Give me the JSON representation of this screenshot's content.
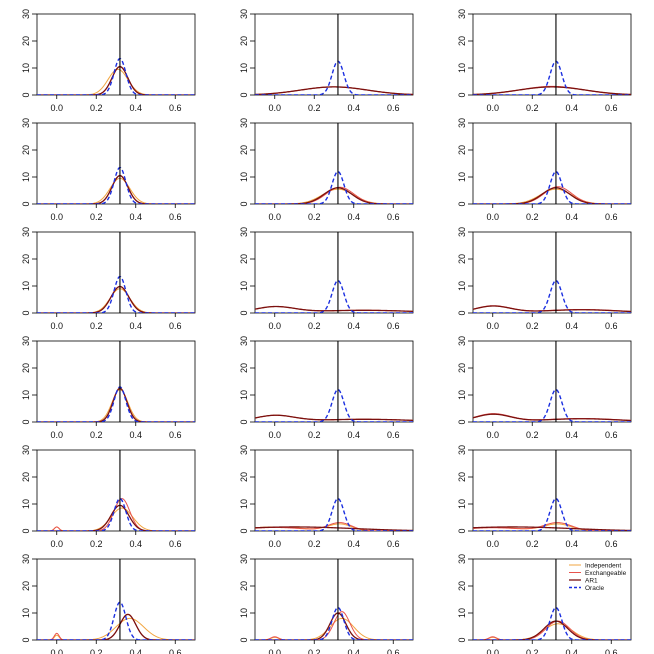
{
  "colors": {
    "independent": "#f2a640",
    "exchangeable": "#e8534d",
    "ar1": "#7a1010",
    "oracle": "#1b2fe0",
    "truth_line": "#000000",
    "axis": "#000000"
  },
  "legend": {
    "placement": "top-right of bottom-right panel",
    "entries": [
      "Independent",
      "Exchangeable",
      "AR1",
      "Oracle"
    ]
  },
  "chart_data": {
    "type": "line",
    "layout": {
      "rows": 6,
      "cols": 3
    },
    "xlim": [
      -0.1,
      0.7
    ],
    "ylim": [
      0,
      30
    ],
    "x_ticks": [
      "0.0",
      "0.2",
      "0.4",
      "0.6"
    ],
    "y_ticks": [
      "0",
      "10",
      "20",
      "30"
    ],
    "truth_x": 0.32,
    "series_names": [
      "Independent",
      "Exchangeable",
      "AR1",
      "Oracle"
    ],
    "panels": [
      {
        "row": 1,
        "col": 1,
        "curves": [
          {
            "name": "Independent",
            "peaks": [
              {
                "m": 0.31,
                "s": 0.05,
                "h": 9.5
              }
            ]
          },
          {
            "name": "Exchangeable",
            "peaks": [
              {
                "m": 0.32,
                "s": 0.04,
                "h": 10.5
              }
            ]
          },
          {
            "name": "AR1",
            "peaks": [
              {
                "m": 0.32,
                "s": 0.04,
                "h": 10.5
              }
            ]
          },
          {
            "name": "Oracle",
            "peaks": [
              {
                "m": 0.32,
                "s": 0.03,
                "h": 13.5
              }
            ]
          }
        ]
      },
      {
        "row": 1,
        "col": 2,
        "curves": [
          {
            "name": "Independent",
            "peaks": [
              {
                "m": 0.3,
                "s": 0.17,
                "h": 3
              }
            ]
          },
          {
            "name": "Exchangeable",
            "peaks": [
              {
                "m": 0.3,
                "s": 0.17,
                "h": 3
              }
            ]
          },
          {
            "name": "AR1",
            "peaks": [
              {
                "m": 0.3,
                "s": 0.17,
                "h": 3
              }
            ]
          },
          {
            "name": "Oracle",
            "peaks": [
              {
                "m": 0.32,
                "s": 0.03,
                "h": 12.5
              }
            ]
          }
        ]
      },
      {
        "row": 1,
        "col": 3,
        "curves": [
          {
            "name": "Independent",
            "peaks": [
              {
                "m": 0.3,
                "s": 0.17,
                "h": 3
              }
            ]
          },
          {
            "name": "Exchangeable",
            "peaks": [
              {
                "m": 0.3,
                "s": 0.16,
                "h": 3.2
              }
            ]
          },
          {
            "name": "AR1",
            "peaks": [
              {
                "m": 0.3,
                "s": 0.17,
                "h": 3
              }
            ]
          },
          {
            "name": "Oracle",
            "peaks": [
              {
                "m": 0.32,
                "s": 0.03,
                "h": 12.5
              }
            ]
          }
        ]
      },
      {
        "row": 2,
        "col": 1,
        "curves": [
          {
            "name": "Independent",
            "peaks": [
              {
                "m": 0.32,
                "s": 0.05,
                "h": 9.5
              }
            ]
          },
          {
            "name": "Exchangeable",
            "peaks": [
              {
                "m": 0.32,
                "s": 0.04,
                "h": 10.5
              }
            ]
          },
          {
            "name": "AR1",
            "peaks": [
              {
                "m": 0.32,
                "s": 0.04,
                "h": 10.5
              }
            ]
          },
          {
            "name": "Oracle",
            "peaks": [
              {
                "m": 0.32,
                "s": 0.03,
                "h": 13.5
              }
            ]
          }
        ]
      },
      {
        "row": 2,
        "col": 2,
        "curves": [
          {
            "name": "Independent",
            "peaks": [
              {
                "m": 0.32,
                "s": 0.08,
                "h": 5.5
              }
            ]
          },
          {
            "name": "Exchangeable",
            "peaks": [
              {
                "m": 0.33,
                "s": 0.07,
                "h": 6.2
              }
            ]
          },
          {
            "name": "AR1",
            "peaks": [
              {
                "m": 0.32,
                "s": 0.07,
                "h": 6
              }
            ]
          },
          {
            "name": "Oracle",
            "peaks": [
              {
                "m": 0.32,
                "s": 0.03,
                "h": 12
              }
            ]
          }
        ]
      },
      {
        "row": 2,
        "col": 3,
        "curves": [
          {
            "name": "Independent",
            "peaks": [
              {
                "m": 0.32,
                "s": 0.08,
                "h": 5.5
              }
            ]
          },
          {
            "name": "Exchangeable",
            "peaks": [
              {
                "m": 0.33,
                "s": 0.07,
                "h": 6.4
              }
            ]
          },
          {
            "name": "AR1",
            "peaks": [
              {
                "m": 0.32,
                "s": 0.07,
                "h": 6
              }
            ]
          },
          {
            "name": "Oracle",
            "peaks": [
              {
                "m": 0.32,
                "s": 0.03,
                "h": 12
              }
            ]
          }
        ]
      },
      {
        "row": 3,
        "col": 1,
        "curves": [
          {
            "name": "Independent",
            "peaks": [
              {
                "m": 0.32,
                "s": 0.05,
                "h": 9
              }
            ]
          },
          {
            "name": "Exchangeable",
            "peaks": [
              {
                "m": 0.32,
                "s": 0.045,
                "h": 9.8
              }
            ]
          },
          {
            "name": "AR1",
            "peaks": [
              {
                "m": 0.32,
                "s": 0.045,
                "h": 9.8
              }
            ]
          },
          {
            "name": "Oracle",
            "peaks": [
              {
                "m": 0.32,
                "s": 0.03,
                "h": 13.5
              }
            ]
          }
        ]
      },
      {
        "row": 3,
        "col": 2,
        "curves": [
          {
            "name": "Independent",
            "peaks": [
              {
                "m": 0.0,
                "s": 0.1,
                "h": 2.2
              },
              {
                "m": 0.45,
                "s": 0.25,
                "h": 1
              }
            ]
          },
          {
            "name": "Exchangeable",
            "peaks": [
              {
                "m": 0.0,
                "s": 0.1,
                "h": 2.2
              },
              {
                "m": 0.45,
                "s": 0.25,
                "h": 1
              }
            ]
          },
          {
            "name": "AR1",
            "peaks": [
              {
                "m": 0.0,
                "s": 0.1,
                "h": 2.2
              },
              {
                "m": 0.45,
                "s": 0.25,
                "h": 1
              }
            ]
          },
          {
            "name": "Oracle",
            "peaks": [
              {
                "m": 0.32,
                "s": 0.03,
                "h": 12
              }
            ]
          }
        ]
      },
      {
        "row": 3,
        "col": 3,
        "curves": [
          {
            "name": "Independent",
            "peaks": [
              {
                "m": 0.0,
                "s": 0.09,
                "h": 2.5
              },
              {
                "m": 0.45,
                "s": 0.2,
                "h": 1.2
              }
            ]
          },
          {
            "name": "Exchangeable",
            "peaks": [
              {
                "m": 0.0,
                "s": 0.09,
                "h": 2.6
              },
              {
                "m": 0.45,
                "s": 0.2,
                "h": 1.3
              }
            ]
          },
          {
            "name": "AR1",
            "peaks": [
              {
                "m": 0.0,
                "s": 0.09,
                "h": 2.5
              },
              {
                "m": 0.45,
                "s": 0.2,
                "h": 1.2
              }
            ]
          },
          {
            "name": "Oracle",
            "peaks": [
              {
                "m": 0.32,
                "s": 0.03,
                "h": 12
              }
            ]
          }
        ]
      },
      {
        "row": 4,
        "col": 1,
        "curves": [
          {
            "name": "Independent",
            "peaks": [
              {
                "m": 0.32,
                "s": 0.04,
                "h": 12
              }
            ]
          },
          {
            "name": "Exchangeable",
            "peaks": [
              {
                "m": 0.32,
                "s": 0.035,
                "h": 12.5
              }
            ]
          },
          {
            "name": "AR1",
            "peaks": [
              {
                "m": 0.32,
                "s": 0.035,
                "h": 12.5
              }
            ]
          },
          {
            "name": "Oracle",
            "peaks": [
              {
                "m": 0.32,
                "s": 0.03,
                "h": 13
              }
            ]
          }
        ]
      },
      {
        "row": 4,
        "col": 2,
        "curves": [
          {
            "name": "Independent",
            "peaks": [
              {
                "m": 0.0,
                "s": 0.1,
                "h": 2.3
              },
              {
                "m": 0.45,
                "s": 0.25,
                "h": 1
              }
            ]
          },
          {
            "name": "Exchangeable",
            "peaks": [
              {
                "m": 0.0,
                "s": 0.1,
                "h": 2.3
              },
              {
                "m": 0.45,
                "s": 0.25,
                "h": 1
              }
            ]
          },
          {
            "name": "AR1",
            "peaks": [
              {
                "m": 0.0,
                "s": 0.1,
                "h": 2.3
              },
              {
                "m": 0.45,
                "s": 0.25,
                "h": 1
              }
            ]
          },
          {
            "name": "Oracle",
            "peaks": [
              {
                "m": 0.32,
                "s": 0.03,
                "h": 12
              }
            ]
          }
        ]
      },
      {
        "row": 4,
        "col": 3,
        "curves": [
          {
            "name": "Independent",
            "peaks": [
              {
                "m": 0.0,
                "s": 0.09,
                "h": 2.8
              },
              {
                "m": 0.45,
                "s": 0.2,
                "h": 1.2
              }
            ]
          },
          {
            "name": "Exchangeable",
            "peaks": [
              {
                "m": 0.0,
                "s": 0.09,
                "h": 3
              },
              {
                "m": 0.45,
                "s": 0.2,
                "h": 1.3
              }
            ]
          },
          {
            "name": "AR1",
            "peaks": [
              {
                "m": 0.0,
                "s": 0.09,
                "h": 2.8
              },
              {
                "m": 0.45,
                "s": 0.2,
                "h": 1.2
              }
            ]
          },
          {
            "name": "Oracle",
            "peaks": [
              {
                "m": 0.32,
                "s": 0.03,
                "h": 12
              }
            ]
          }
        ]
      },
      {
        "row": 5,
        "col": 1,
        "curves": [
          {
            "name": "Independent",
            "peaks": [
              {
                "m": 0.0,
                "s": 0.012,
                "h": 1.5
              },
              {
                "m": 0.33,
                "s": 0.055,
                "h": 8.5
              }
            ]
          },
          {
            "name": "Exchangeable",
            "peaks": [
              {
                "m": 0.0,
                "s": 0.012,
                "h": 1.5
              },
              {
                "m": 0.33,
                "s": 0.04,
                "h": 12
              }
            ]
          },
          {
            "name": "AR1",
            "peaks": [
              {
                "m": 0.32,
                "s": 0.045,
                "h": 9.5
              }
            ]
          },
          {
            "name": "Oracle",
            "peaks": [
              {
                "m": 0.32,
                "s": 0.03,
                "h": 12
              }
            ]
          }
        ]
      },
      {
        "row": 5,
        "col": 2,
        "curves": [
          {
            "name": "Independent",
            "peaks": [
              {
                "m": 0.0,
                "s": 0.15,
                "h": 1.5
              },
              {
                "m": 0.33,
                "s": 0.06,
                "h": 2.5
              }
            ]
          },
          {
            "name": "Exchangeable",
            "peaks": [
              {
                "m": 0.0,
                "s": 0.15,
                "h": 1.3
              },
              {
                "m": 0.33,
                "s": 0.06,
                "h": 3
              }
            ]
          },
          {
            "name": "AR1",
            "peaks": [
              {
                "m": 0.1,
                "s": 0.3,
                "h": 1.5
              }
            ]
          },
          {
            "name": "Oracle",
            "peaks": [
              {
                "m": 0.32,
                "s": 0.03,
                "h": 12
              }
            ]
          }
        ]
      },
      {
        "row": 5,
        "col": 3,
        "curves": [
          {
            "name": "Independent",
            "peaks": [
              {
                "m": 0.0,
                "s": 0.15,
                "h": 1.3
              },
              {
                "m": 0.33,
                "s": 0.07,
                "h": 2.5
              }
            ]
          },
          {
            "name": "Exchangeable",
            "peaks": [
              {
                "m": 0.0,
                "s": 0.15,
                "h": 1.2
              },
              {
                "m": 0.33,
                "s": 0.07,
                "h": 3
              }
            ]
          },
          {
            "name": "AR1",
            "peaks": [
              {
                "m": 0.1,
                "s": 0.3,
                "h": 1.5
              }
            ]
          },
          {
            "name": "Oracle",
            "peaks": [
              {
                "m": 0.32,
                "s": 0.03,
                "h": 12
              }
            ]
          }
        ]
      },
      {
        "row": 6,
        "col": 1,
        "curves": [
          {
            "name": "Independent",
            "peaks": [
              {
                "m": 0.0,
                "s": 0.012,
                "h": 1.8
              },
              {
                "m": 0.37,
                "s": 0.07,
                "h": 8
              }
            ]
          },
          {
            "name": "Exchangeable",
            "peaks": [
              {
                "m": 0.0,
                "s": 0.012,
                "h": 2.5
              },
              {
                "m": 0.36,
                "s": 0.04,
                "h": 9.5
              }
            ]
          },
          {
            "name": "AR1",
            "peaks": [
              {
                "m": 0.36,
                "s": 0.04,
                "h": 9.5
              }
            ]
          },
          {
            "name": "Oracle",
            "peaks": [
              {
                "m": 0.32,
                "s": 0.03,
                "h": 14
              }
            ]
          }
        ]
      },
      {
        "row": 6,
        "col": 2,
        "curves": [
          {
            "name": "Independent",
            "peaks": [
              {
                "m": 0.0,
                "s": 0.02,
                "h": 1
              },
              {
                "m": 0.34,
                "s": 0.06,
                "h": 8
              }
            ]
          },
          {
            "name": "Exchangeable",
            "peaks": [
              {
                "m": 0.0,
                "s": 0.02,
                "h": 1.2
              },
              {
                "m": 0.34,
                "s": 0.04,
                "h": 10.5
              }
            ]
          },
          {
            "name": "AR1",
            "peaks": [
              {
                "m": 0.32,
                "s": 0.04,
                "h": 10
              }
            ]
          },
          {
            "name": "Oracle",
            "peaks": [
              {
                "m": 0.32,
                "s": 0.03,
                "h": 12
              }
            ]
          }
        ]
      },
      {
        "row": 6,
        "col": 3,
        "curves": [
          {
            "name": "Independent",
            "peaks": [
              {
                "m": 0.0,
                "s": 0.02,
                "h": 1
              },
              {
                "m": 0.33,
                "s": 0.07,
                "h": 6
              }
            ]
          },
          {
            "name": "Exchangeable",
            "peaks": [
              {
                "m": 0.0,
                "s": 0.02,
                "h": 1.2
              },
              {
                "m": 0.33,
                "s": 0.06,
                "h": 7
              }
            ]
          },
          {
            "name": "AR1",
            "peaks": [
              {
                "m": 0.32,
                "s": 0.06,
                "h": 7
              }
            ]
          },
          {
            "name": "Oracle",
            "peaks": [
              {
                "m": 0.32,
                "s": 0.03,
                "h": 12
              }
            ]
          }
        ]
      }
    ]
  }
}
